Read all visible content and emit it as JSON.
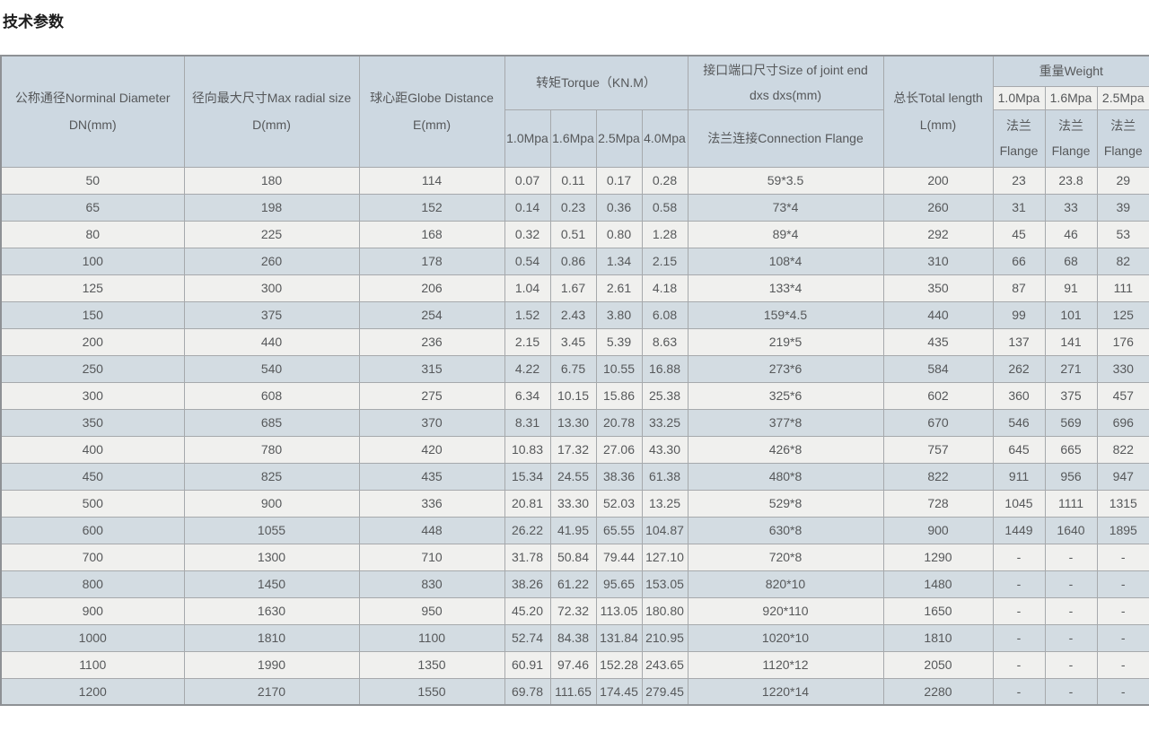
{
  "page": {
    "title": "技术参数"
  },
  "table": {
    "header": {
      "dn": {
        "line1": "公称通径Norminal Diameter",
        "line2": "DN(mm)"
      },
      "d": {
        "line1": "径向最大尺寸Max radial size",
        "line2": "D(mm)"
      },
      "e": {
        "line1": "球心距Globe Distance",
        "line2": "E(mm)"
      },
      "torque": {
        "label": "转矩Torque（KN.M）",
        "sub": [
          "1.0Mpa",
          "1.6Mpa",
          "2.5Mpa",
          "4.0Mpa"
        ]
      },
      "joint": {
        "line1": "接口端口尺寸Size of joint end",
        "line2": "dxs dxs(mm)",
        "sub": "法兰连接Connection Flange"
      },
      "length": {
        "line1": "总长Total length",
        "line2": "L(mm)"
      },
      "weight": {
        "label": "重量Weight",
        "sub": [
          "1.0Mpa",
          "1.6Mpa",
          "2.5Mpa"
        ],
        "flange_cn": "法兰",
        "flange_en": "Flange"
      }
    },
    "colors": {
      "header_bg": "#cdd8e1",
      "row_light_bg": "#f0f0ee",
      "row_blue_bg": "#d3dce2",
      "border": "#a6a9ac",
      "text": "#56585a"
    },
    "rows": [
      [
        "50",
        "180",
        "114",
        "0.07",
        "0.11",
        "0.17",
        "0.28",
        "59*3.5",
        "200",
        "23",
        "23.8",
        "29"
      ],
      [
        "65",
        "198",
        "152",
        "0.14",
        "0.23",
        "0.36",
        "0.58",
        "73*4",
        "260",
        "31",
        "33",
        "39"
      ],
      [
        "80",
        "225",
        "168",
        "0.32",
        "0.51",
        "0.80",
        "1.28",
        "89*4",
        "292",
        "45",
        "46",
        "53"
      ],
      [
        "100",
        "260",
        "178",
        "0.54",
        "0.86",
        "1.34",
        "2.15",
        "108*4",
        "310",
        "66",
        "68",
        "82"
      ],
      [
        "125",
        "300",
        "206",
        "1.04",
        "1.67",
        "2.61",
        "4.18",
        "133*4",
        "350",
        "87",
        "91",
        "111"
      ],
      [
        "150",
        "375",
        "254",
        "1.52",
        "2.43",
        "3.80",
        "6.08",
        "159*4.5",
        "440",
        "99",
        "101",
        "125"
      ],
      [
        "200",
        "440",
        "236",
        "2.15",
        "3.45",
        "5.39",
        "8.63",
        "219*5",
        "435",
        "137",
        "141",
        "176"
      ],
      [
        "250",
        "540",
        "315",
        "4.22",
        "6.75",
        "10.55",
        "16.88",
        "273*6",
        "584",
        "262",
        "271",
        "330"
      ],
      [
        "300",
        "608",
        "275",
        "6.34",
        "10.15",
        "15.86",
        "25.38",
        "325*6",
        "602",
        "360",
        "375",
        "457"
      ],
      [
        "350",
        "685",
        "370",
        "8.31",
        "13.30",
        "20.78",
        "33.25",
        "377*8",
        "670",
        "546",
        "569",
        "696"
      ],
      [
        "400",
        "780",
        "420",
        "10.83",
        "17.32",
        "27.06",
        "43.30",
        "426*8",
        "757",
        "645",
        "665",
        "822"
      ],
      [
        "450",
        "825",
        "435",
        "15.34",
        "24.55",
        "38.36",
        "61.38",
        "480*8",
        "822",
        "911",
        "956",
        "947"
      ],
      [
        "500",
        "900",
        "336",
        "20.81",
        "33.30",
        "52.03",
        "13.25",
        "529*8",
        "728",
        "1045",
        "1111",
        "1315"
      ],
      [
        "600",
        "1055",
        "448",
        "26.22",
        "41.95",
        "65.55",
        "104.87",
        "630*8",
        "900",
        "1449",
        "1640",
        "1895"
      ],
      [
        "700",
        "1300",
        "710",
        "31.78",
        "50.84",
        "79.44",
        "127.10",
        "720*8",
        "1290",
        "-",
        "-",
        "-"
      ],
      [
        "800",
        "1450",
        "830",
        "38.26",
        "61.22",
        "95.65",
        "153.05",
        "820*10",
        "1480",
        "-",
        "-",
        "-"
      ],
      [
        "900",
        "1630",
        "950",
        "45.20",
        "72.32",
        "113.05",
        "180.80",
        "920*110",
        "1650",
        "-",
        "-",
        "-"
      ],
      [
        "1000",
        "1810",
        "1100",
        "52.74",
        "84.38",
        "131.84",
        "210.95",
        "1020*10",
        "1810",
        "-",
        "-",
        "-"
      ],
      [
        "1100",
        "1990",
        "1350",
        "60.91",
        "97.46",
        "152.28",
        "243.65",
        "1120*12",
        "2050",
        "-",
        "-",
        "-"
      ],
      [
        "1200",
        "2170",
        "1550",
        "69.78",
        "111.65",
        "174.45",
        "279.45",
        "1220*14",
        "2280",
        "-",
        "-",
        "-"
      ]
    ]
  }
}
